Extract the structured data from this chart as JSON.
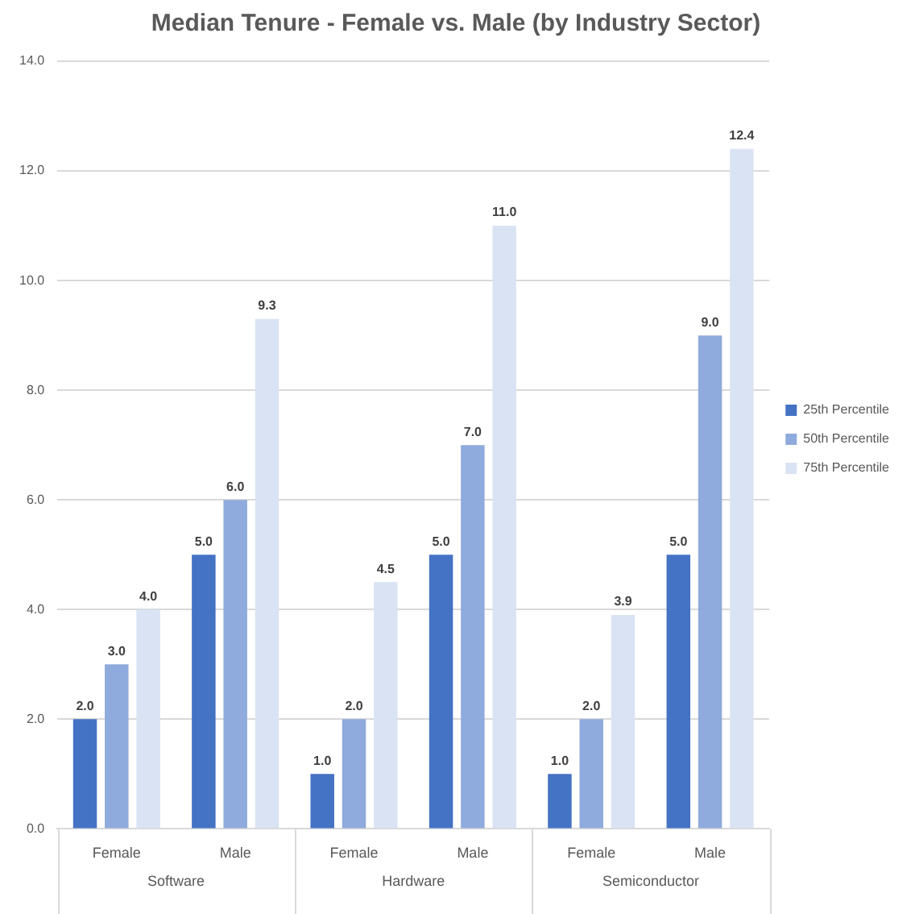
{
  "chart_data": {
    "type": "bar",
    "title": "Median Tenure - Female vs. Male (by Industry Sector)",
    "categories": [
      "Female",
      "Male",
      "Female",
      "Male",
      "Female",
      "Male"
    ],
    "annotations": [
      "Software",
      "Hardware",
      "Semiconductor"
    ],
    "series": [
      {
        "name": "25th Percentile",
        "color": "#4472c4",
        "values": [
          2,
          5,
          1,
          5,
          1,
          5
        ],
        "value_labels": [
          "2.0",
          "5.0",
          "1.0",
          "5.0",
          "1.0",
          "5.0"
        ]
      },
      {
        "name": "50th Percentile",
        "color": "#8faadc",
        "values": [
          3,
          6,
          2,
          7,
          2,
          9
        ],
        "value_labels": [
          "3.0",
          "6.0",
          "2.0",
          "7.0",
          "2.0",
          "9.0"
        ]
      },
      {
        "name": "75th Percentile",
        "color": "#dae3f3",
        "values": [
          4,
          9.3,
          4.5,
          11,
          3.9,
          12.4
        ],
        "value_labels": [
          "4.0",
          "9.3",
          "4.5",
          "11.0",
          "3.9",
          "12.4"
        ]
      }
    ],
    "ylim": [
      0,
      14
    ],
    "yticks": [
      {
        "value": 0,
        "label": "0.0"
      },
      {
        "value": 2,
        "label": "2.0"
      },
      {
        "value": 4,
        "label": "4.0"
      },
      {
        "value": 6,
        "label": "6.0"
      },
      {
        "value": 8,
        "label": "8.0"
      },
      {
        "value": 10,
        "label": "10.0"
      },
      {
        "value": 12,
        "label": "12.0"
      },
      {
        "value": 14,
        "label": "14.0"
      }
    ],
    "grid": "y",
    "legend": "right"
  }
}
